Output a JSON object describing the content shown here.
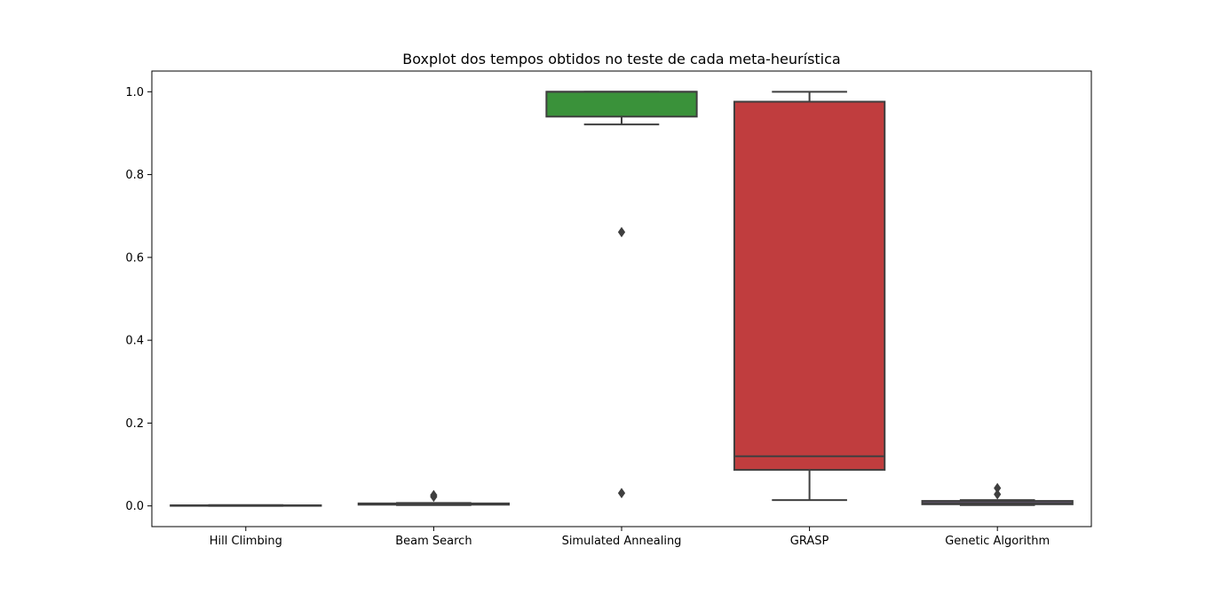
{
  "chart_data": {
    "type": "boxplot",
    "title": "Boxplot dos tempos obtidos no teste de cada meta-heurística",
    "xlabel": "",
    "ylabel": "",
    "ylim": [
      -0.05,
      1.05
    ],
    "yticks": [
      0.0,
      0.2,
      0.4,
      0.6,
      0.8,
      1.0
    ],
    "ytick_labels": [
      "0.0",
      "0.2",
      "0.4",
      "0.6",
      "0.8",
      "1.0"
    ],
    "grid": false,
    "legend": "none",
    "categories": [
      "Hill Climbing",
      "Beam Search",
      "Simulated Annealing",
      "GRASP",
      "Genetic Algorithm"
    ],
    "boxes": [
      {
        "category": "Hill Climbing",
        "color": "#3274a1",
        "whisker_low": 0.0,
        "q1": 0.0005,
        "median": 0.001,
        "q3": 0.0015,
        "whisker_high": 0.002,
        "outliers": []
      },
      {
        "category": "Beam Search",
        "color": "#e1812c",
        "whisker_low": 0.002,
        "q1": 0.003,
        "median": 0.004,
        "q3": 0.006,
        "whisker_high": 0.007,
        "outliers": [
          0.022,
          0.026
        ]
      },
      {
        "category": "Simulated Annealing",
        "color": "#3a923a",
        "whisker_low": 0.921,
        "q1": 0.94,
        "median": 1.0,
        "q3": 1.0,
        "whisker_high": 1.0,
        "outliers": [
          0.661,
          0.031
        ]
      },
      {
        "category": "GRASP",
        "color": "#c03d3e",
        "whisker_low": 0.014,
        "q1": 0.087,
        "median": 0.12,
        "q3": 0.976,
        "whisker_high": 1.0,
        "outliers": []
      },
      {
        "category": "Genetic Algorithm",
        "color": "#9372b2",
        "whisker_low": 0.002,
        "q1": 0.004,
        "median": 0.007,
        "q3": 0.012,
        "whisker_high": 0.014,
        "outliers": [
          0.028,
          0.043
        ]
      }
    ]
  }
}
